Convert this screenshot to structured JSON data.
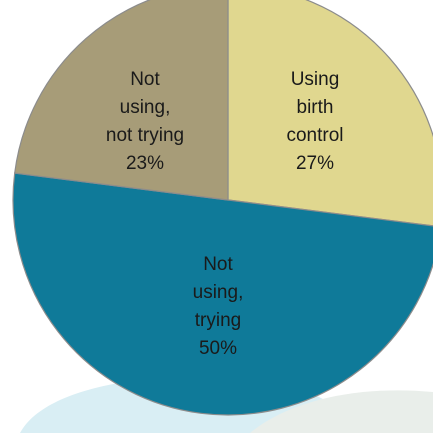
{
  "chart_data": {
    "type": "pie",
    "slices": [
      {
        "label_lines": [
          "Using",
          "birth",
          "control"
        ],
        "value": 27,
        "value_label": "27%",
        "color": "#e0d78f"
      },
      {
        "label_lines": [
          "Not",
          "using,",
          "trying"
        ],
        "value": 50,
        "value_label": "50%",
        "color": "#0f7a99"
      },
      {
        "label_lines": [
          "Not",
          "using,",
          "not trying"
        ],
        "value": 23,
        "value_label": "23%",
        "color": "#a79c78"
      }
    ],
    "start_angle_deg": 0,
    "direction": "clockwise",
    "slice_border_color": "#8c8c8c",
    "background_swoosh_colors": [
      "#d9eef4",
      "#e9eeea"
    ]
  }
}
